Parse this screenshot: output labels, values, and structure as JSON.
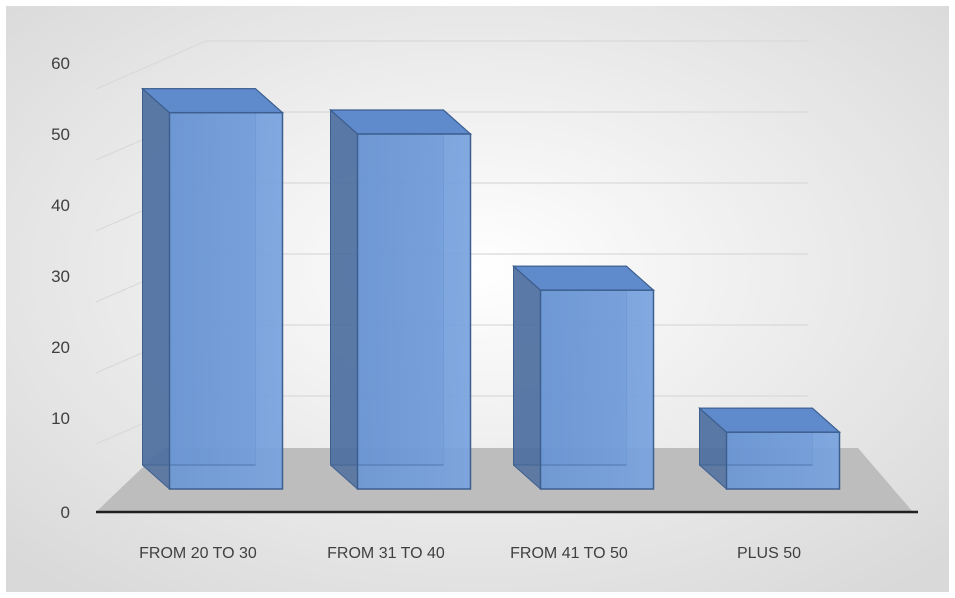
{
  "chart_data": {
    "type": "bar",
    "categories": [
      "FROM 20 TO 30",
      "FROM 31 TO 40",
      "FROM 41 TO 50",
      "PLUS 50"
    ],
    "values": [
      53,
      50,
      28,
      8
    ],
    "y_ticks": [
      "0",
      "10",
      "20",
      "30",
      "40",
      "50",
      "60"
    ],
    "ylim": [
      0,
      60
    ],
    "grid": true,
    "legend": "none",
    "style": "3d-column"
  },
  "colors": {
    "bar_front": "#6f9bd8",
    "bar_side": "#4d6f9f",
    "bar_top": "#5f8acb",
    "bar_edge": "#3d5f90",
    "floor": "#bdbdbd",
    "gridline": "#d9d9d9",
    "axis": "#1f1f1f"
  }
}
